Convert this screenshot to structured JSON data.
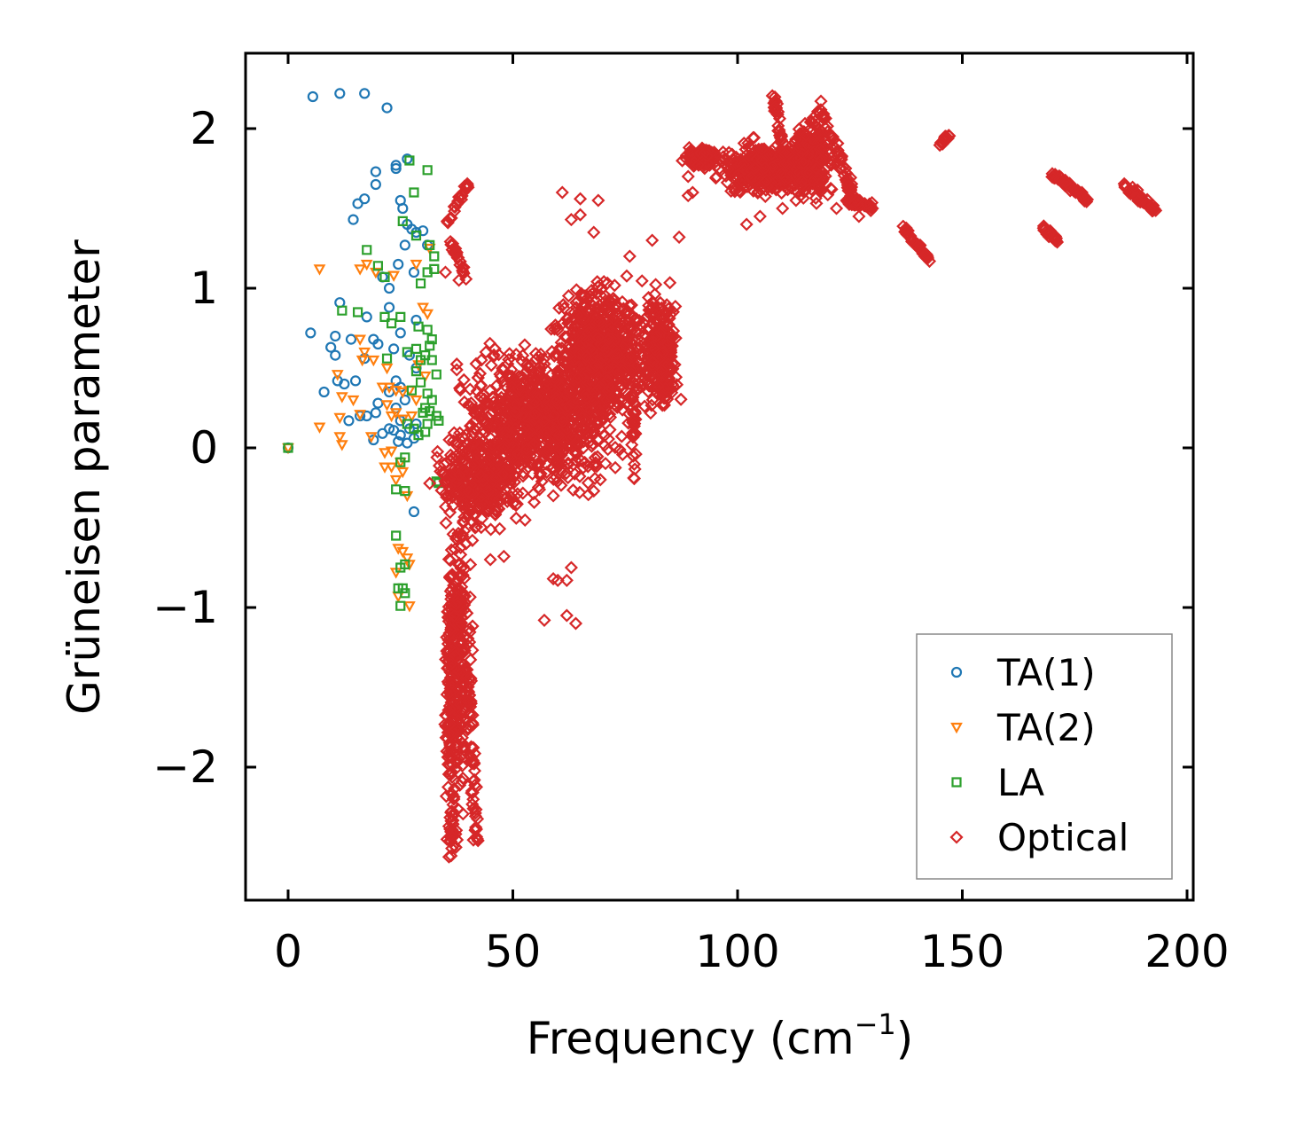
{
  "chart_data": {
    "type": "scatter",
    "title": "",
    "xlabel": "Frequency (cm",
    "xlabel_sup": "−1",
    "xlabel_end": ")",
    "ylabel": "Grüneisen parameter",
    "xlim": [
      -10,
      203
    ],
    "ylim": [
      -2.85,
      2.48
    ],
    "xticks": [
      0,
      50,
      100,
      150,
      200
    ],
    "xtick_labels": [
      "0",
      "50",
      "100",
      "150",
      "200"
    ],
    "yticks": [
      -2,
      -1,
      0,
      1,
      2
    ],
    "ytick_labels": [
      "−2",
      "−1",
      "0",
      "1",
      "2"
    ],
    "legend_position": "lower-right",
    "series": [
      {
        "name": "TA(1)",
        "marker": "circle",
        "color": "#1f77b4",
        "points": [
          [
            0,
            0
          ],
          [
            5.5,
            2.2
          ],
          [
            11.5,
            2.22
          ],
          [
            17,
            2.22
          ],
          [
            22,
            2.13
          ],
          [
            26.5,
            1.81
          ],
          [
            24,
            1.77
          ],
          [
            19.5,
            1.73
          ],
          [
            24,
            1.75
          ],
          [
            17,
            1.56
          ],
          [
            15.5,
            1.53
          ],
          [
            19.5,
            1.65
          ],
          [
            25,
            1.55
          ],
          [
            25.5,
            1.5
          ],
          [
            14.5,
            1.43
          ],
          [
            26.5,
            1.4
          ],
          [
            27.5,
            1.37
          ],
          [
            28.5,
            1.35
          ],
          [
            30,
            1.36
          ],
          [
            31,
            1.27
          ],
          [
            26,
            1.27
          ],
          [
            28,
            1.1
          ],
          [
            24.5,
            1.15
          ],
          [
            22.5,
            1.0
          ],
          [
            21,
            1.07
          ],
          [
            11.5,
            0.91
          ],
          [
            5,
            0.72
          ],
          [
            10.5,
            0.7
          ],
          [
            14,
            0.68
          ],
          [
            19,
            0.68
          ],
          [
            20,
            0.65
          ],
          [
            17.5,
            0.82
          ],
          [
            22.5,
            0.88
          ],
          [
            25,
            0.72
          ],
          [
            28.5,
            0.8
          ],
          [
            23.5,
            0.62
          ],
          [
            9.5,
            0.63
          ],
          [
            10.5,
            0.58
          ],
          [
            17,
            0.56
          ],
          [
            27,
            0.58
          ],
          [
            28.5,
            0.5
          ],
          [
            24,
            0.42
          ],
          [
            25,
            0.38
          ],
          [
            11,
            0.42
          ],
          [
            12.5,
            0.4
          ],
          [
            15,
            0.42
          ],
          [
            8,
            0.35
          ],
          [
            22.5,
            0.35
          ],
          [
            20,
            0.28
          ],
          [
            24,
            0.25
          ],
          [
            26,
            0.3
          ],
          [
            16,
            0.2
          ],
          [
            17.5,
            0.2
          ],
          [
            19.5,
            0.22
          ],
          [
            13.5,
            0.17
          ],
          [
            22.5,
            0.12
          ],
          [
            23.5,
            0.11
          ],
          [
            25,
            0.17
          ],
          [
            27,
            0.12
          ],
          [
            28.5,
            0.15
          ],
          [
            21,
            0.09
          ],
          [
            19,
            0.05
          ],
          [
            24.5,
            0.04
          ],
          [
            26.5,
            0.03
          ],
          [
            28,
            0.06
          ],
          [
            25,
            0.08
          ],
          [
            28,
            -0.4
          ]
        ]
      },
      {
        "name": "TA(2)",
        "marker": "triangle-down",
        "color": "#ff7f0e",
        "points": [
          [
            0,
            0
          ],
          [
            7,
            1.12
          ],
          [
            16,
            1.12
          ],
          [
            17.5,
            1.15
          ],
          [
            19.5,
            1.1
          ],
          [
            23.5,
            1.08
          ],
          [
            28.5,
            1.15
          ],
          [
            31.5,
            1.25
          ],
          [
            30,
            0.88
          ],
          [
            31,
            0.84
          ],
          [
            16,
            0.68
          ],
          [
            17,
            0.6
          ],
          [
            19,
            0.55
          ],
          [
            16.5,
            0.55
          ],
          [
            11,
            0.46
          ],
          [
            22,
            0.5
          ],
          [
            29,
            0.52
          ],
          [
            30.5,
            0.45
          ],
          [
            21,
            0.38
          ],
          [
            22.5,
            0.38
          ],
          [
            24,
            0.36
          ],
          [
            25.5,
            0.35
          ],
          [
            27,
            0.36
          ],
          [
            28.5,
            0.3
          ],
          [
            12,
            0.32
          ],
          [
            14.5,
            0.3
          ],
          [
            22,
            0.27
          ],
          [
            24,
            0.22
          ],
          [
            23,
            0.2
          ],
          [
            25.5,
            0.18
          ],
          [
            27.5,
            0.2
          ],
          [
            11.5,
            0.19
          ],
          [
            16,
            0.21
          ],
          [
            7,
            0.13
          ],
          [
            12,
            0.02
          ],
          [
            11.5,
            0.07
          ],
          [
            18.5,
            0.07
          ],
          [
            21.5,
            -0.03
          ],
          [
            23,
            -0.02
          ],
          [
            21.5,
            -0.12
          ],
          [
            23,
            -0.12
          ],
          [
            25,
            -0.09
          ],
          [
            25.5,
            -0.15
          ],
          [
            24,
            -0.2
          ],
          [
            26.5,
            -0.3
          ],
          [
            24.5,
            -0.63
          ],
          [
            25.5,
            -0.65
          ],
          [
            26.5,
            -0.69
          ],
          [
            27,
            -0.73
          ],
          [
            24,
            -0.78
          ],
          [
            24.5,
            -0.93
          ],
          [
            27,
            -0.99
          ]
        ]
      },
      {
        "name": "LA",
        "marker": "square",
        "color": "#2ca02c",
        "points": [
          [
            0,
            0
          ],
          [
            27,
            1.8
          ],
          [
            31,
            1.74
          ],
          [
            28,
            1.6
          ],
          [
            25.5,
            1.42
          ],
          [
            28.5,
            1.33
          ],
          [
            31.5,
            1.27
          ],
          [
            32.5,
            1.2
          ],
          [
            17.5,
            1.24
          ],
          [
            20,
            1.14
          ],
          [
            21.5,
            1.07
          ],
          [
            31,
            1.1
          ],
          [
            32.5,
            1.12
          ],
          [
            29.5,
            1.03
          ],
          [
            12,
            0.86
          ],
          [
            15.5,
            0.85
          ],
          [
            21.5,
            0.82
          ],
          [
            25,
            0.82
          ],
          [
            23,
            0.78
          ],
          [
            29,
            0.76
          ],
          [
            31,
            0.74
          ],
          [
            32,
            0.68
          ],
          [
            31.5,
            0.64
          ],
          [
            26.5,
            0.6
          ],
          [
            28.5,
            0.62
          ],
          [
            22,
            0.56
          ],
          [
            29.5,
            0.55
          ],
          [
            30.5,
            0.58
          ],
          [
            32,
            0.55
          ],
          [
            28.5,
            0.48
          ],
          [
            33,
            0.46
          ],
          [
            29.5,
            0.41
          ],
          [
            27.5,
            0.36
          ],
          [
            31,
            0.34
          ],
          [
            32,
            0.3
          ],
          [
            30,
            0.22
          ],
          [
            30.5,
            0.25
          ],
          [
            31.5,
            0.23
          ],
          [
            33,
            0.2
          ],
          [
            26.5,
            0.15
          ],
          [
            28,
            0.12
          ],
          [
            31,
            0.15
          ],
          [
            33.5,
            0.17
          ],
          [
            29,
            0.08
          ],
          [
            30.5,
            0.1
          ],
          [
            26,
            -0.06
          ],
          [
            25,
            -0.09
          ],
          [
            33,
            -0.21
          ],
          [
            33.5,
            -0.22
          ],
          [
            24,
            -0.26
          ],
          [
            26,
            -0.27
          ],
          [
            24,
            -0.55
          ],
          [
            25,
            -0.75
          ],
          [
            26,
            -0.73
          ],
          [
            24.5,
            -0.88
          ],
          [
            25.5,
            -0.88
          ],
          [
            26,
            -0.91
          ],
          [
            25,
            -0.99
          ]
        ]
      },
      {
        "name": "Optical",
        "marker": "diamond",
        "color": "#d62728",
        "regions": [
          {
            "cx": 56,
            "cy": 0.18,
            "rx": 22,
            "ry": 0.55,
            "n": 900
          },
          {
            "cx": 70,
            "cy": 0.6,
            "rx": 14,
            "ry": 0.55,
            "n": 700
          },
          {
            "cx": 83,
            "cy": 0.6,
            "rx": 5,
            "ry": 0.5,
            "n": 250
          },
          {
            "cx": 42,
            "cy": -0.2,
            "rx": 12,
            "ry": 0.4,
            "n": 350
          },
          {
            "cx": 38,
            "cy": -1.3,
            "rx": 3.5,
            "ry": 1.2,
            "n": 250
          },
          {
            "cx": 108,
            "cy": 1.75,
            "rx": 15,
            "ry": 0.2,
            "n": 500
          },
          {
            "cx": 116,
            "cy": 1.8,
            "rx": 6,
            "ry": 0.3,
            "n": 300
          },
          {
            "cx": 92,
            "cy": 1.82,
            "rx": 5,
            "ry": 0.08,
            "n": 120
          }
        ],
        "lines": [
          {
            "from": [
              36,
              -1.0
            ],
            "to": [
              36.5,
              -2.55
            ],
            "n": 120,
            "spread": [
              1.8,
              0.06
            ]
          },
          {
            "from": [
              40,
              -1.4
            ],
            "to": [
              42,
              -2.45
            ],
            "n": 60,
            "spread": [
              1.2,
              0.05
            ]
          },
          {
            "from": [
              137,
              1.38
            ],
            "to": [
              143,
              1.16
            ],
            "n": 40,
            "spread": [
              0.5,
              0.03
            ]
          },
          {
            "from": [
              170,
              1.72
            ],
            "to": [
              178,
              1.55
            ],
            "n": 60,
            "spread": [
              0.5,
              0.03
            ]
          },
          {
            "from": [
              186,
              1.65
            ],
            "to": [
              193,
              1.48
            ],
            "n": 60,
            "spread": [
              0.5,
              0.04
            ]
          },
          {
            "from": [
              168,
              1.38
            ],
            "to": [
              171,
              1.3
            ],
            "n": 25,
            "spread": [
              0.3,
              0.03
            ]
          },
          {
            "from": [
              145,
              1.9
            ],
            "to": [
              147,
              1.96
            ],
            "n": 20,
            "spread": [
              0.3,
              0.02
            ]
          },
          {
            "from": [
              108,
              2.2
            ],
            "to": [
              110,
              1.9
            ],
            "n": 30,
            "spread": [
              0.6,
              0.03
            ]
          },
          {
            "from": [
              118,
              2.15
            ],
            "to": [
              126,
              1.55
            ],
            "n": 60,
            "spread": [
              1.2,
              0.05
            ]
          },
          {
            "from": [
              124,
              1.55
            ],
            "to": [
              131,
              1.5
            ],
            "n": 30,
            "spread": [
              0.6,
              0.03
            ]
          },
          {
            "from": [
              77,
              -0.22
            ],
            "to": [
              77,
              0.3
            ],
            "n": 30,
            "spread": [
              0.6,
              0.03
            ]
          },
          {
            "from": [
              35,
              1.38
            ],
            "to": [
              40,
              1.66
            ],
            "n": 20,
            "spread": [
              0.7,
              0.03
            ]
          },
          {
            "from": [
              36,
              1.3
            ],
            "to": [
              40,
              1.05
            ],
            "n": 20,
            "spread": [
              0.6,
              0.04
            ]
          }
        ],
        "points": [
          [
            61,
            1.6
          ],
          [
            65,
            1.56
          ],
          [
            69,
            1.55
          ],
          [
            63,
            1.43
          ],
          [
            68,
            1.35
          ],
          [
            65,
            1.46
          ],
          [
            76,
            1.2
          ],
          [
            81,
            1.3
          ],
          [
            87,
            1.32
          ],
          [
            60,
            -0.83
          ],
          [
            59,
            -0.82
          ],
          [
            62,
            -0.83
          ],
          [
            63,
            -0.75
          ],
          [
            57,
            -1.08
          ],
          [
            62,
            -1.05
          ],
          [
            64,
            -1.1
          ],
          [
            68,
            -0.27
          ],
          [
            59,
            -0.3
          ],
          [
            46,
            0.62
          ],
          [
            44,
            0.6
          ],
          [
            43,
            0.55
          ],
          [
            35,
            1.1
          ],
          [
            38,
            1.05
          ],
          [
            45,
            -0.7
          ],
          [
            48,
            -0.68
          ],
          [
            41,
            -0.58
          ],
          [
            105,
            1.45
          ],
          [
            102,
            1.4
          ],
          [
            110,
            1.5
          ],
          [
            113,
            1.55
          ],
          [
            122,
            1.5
          ],
          [
            127,
            1.45
          ],
          [
            130,
            1.5
          ],
          [
            89,
            1.7
          ],
          [
            89,
            1.58
          ],
          [
            90,
            1.6
          ]
        ]
      }
    ]
  }
}
